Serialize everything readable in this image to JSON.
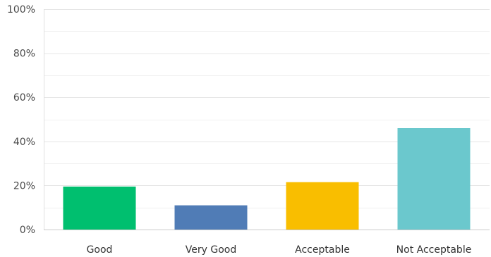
{
  "chart_data": {
    "type": "bar",
    "categories": [
      "Good",
      "Very Good",
      "Acceptable",
      "Not Acceptable"
    ],
    "values": [
      19.5,
      11.0,
      21.5,
      46.0
    ],
    "colors": [
      "#00bf6f",
      "#507cb6",
      "#f9be00",
      "#6bc8cd"
    ],
    "ylim": [
      0,
      100
    ],
    "y_ticks": [
      0,
      20,
      40,
      60,
      80,
      100
    ],
    "y_tick_labels": [
      "0%",
      "20%",
      "40%",
      "60%",
      "80%",
      "100%"
    ],
    "minor_gridlines": [
      10,
      30,
      50,
      70,
      90
    ],
    "grid": true,
    "title": "",
    "xlabel": "",
    "ylabel": ""
  }
}
